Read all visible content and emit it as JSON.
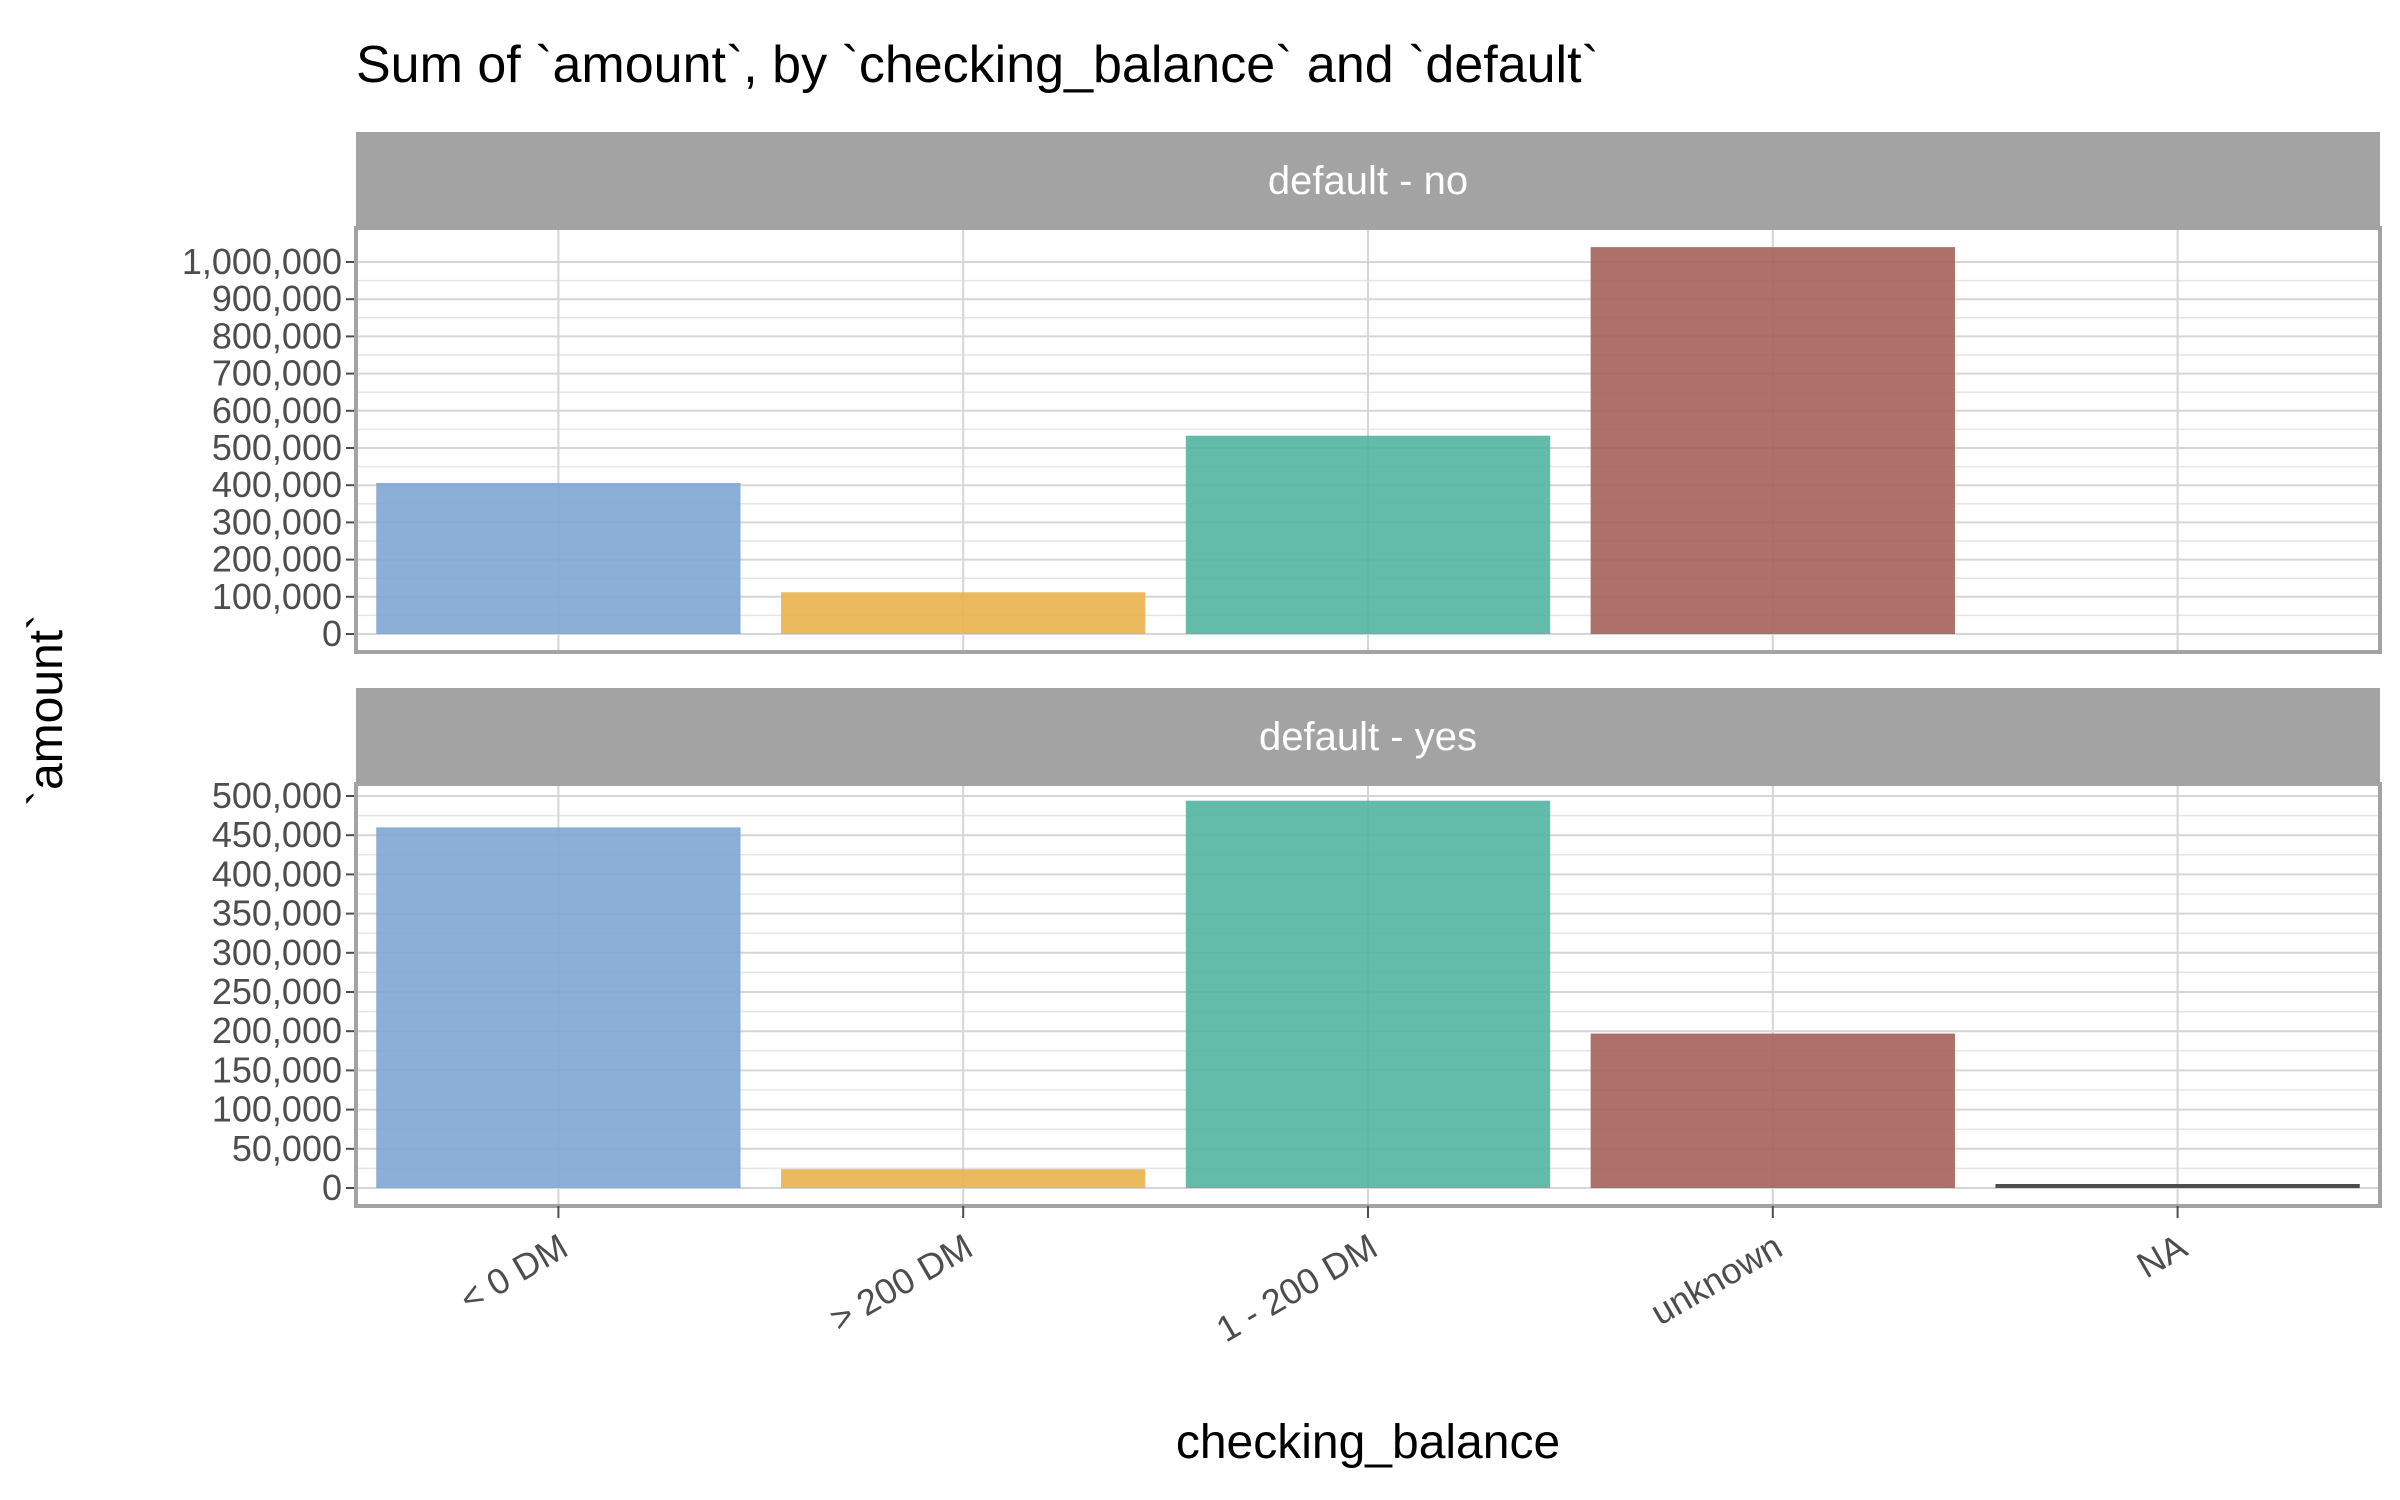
{
  "chart_data": {
    "type": "bar",
    "title": "Sum of `amount`, by `checking_balance` and `default`",
    "xlabel": "checking_balance",
    "ylabel": "`amount`",
    "categories": [
      "< 0 DM",
      "> 200 DM",
      "1 - 200 DM",
      "unknown",
      "NA"
    ],
    "colors": [
      "#7ea6d1",
      "#e9b14c",
      "#52b4a0",
      "#a4615a",
      "#4d4d4d"
    ],
    "grid": true,
    "panels": [
      {
        "label": "default - no",
        "ylim": [
          0,
          1000000
        ],
        "ticks": [
          0,
          100000,
          200000,
          300000,
          400000,
          500000,
          600000,
          700000,
          800000,
          900000,
          1000000
        ],
        "tick_labels": [
          "0",
          "100,000",
          "200,000",
          "300,000",
          "400,000",
          "500,000",
          "600,000",
          "700,000",
          "800,000",
          "900,000",
          "1,000,000"
        ],
        "values": [
          406000,
          112000,
          533000,
          1040000,
          0
        ]
      },
      {
        "label": "default - yes",
        "ylim": [
          0,
          500000
        ],
        "ticks": [
          0,
          50000,
          100000,
          150000,
          200000,
          250000,
          300000,
          350000,
          400000,
          450000,
          500000
        ],
        "tick_labels": [
          "0",
          "50,000",
          "100,000",
          "150,000",
          "200,000",
          "250,000",
          "300,000",
          "350,000",
          "400,000",
          "450,000",
          "500,000"
        ],
        "values": [
          460000,
          24000,
          494000,
          197000,
          3000
        ]
      }
    ]
  }
}
